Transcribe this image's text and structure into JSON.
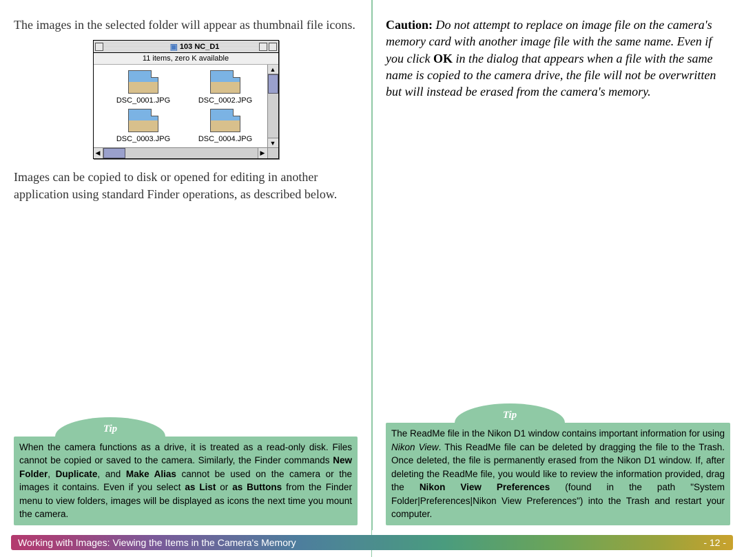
{
  "left": {
    "intro": "The images in the selected folder will appear as thumbnail file icons.",
    "below": "Images can be copied to disk or opened for editing in another application using standard Finder operations, as described below."
  },
  "finder": {
    "title": "103 NC_D1",
    "status": "11 items, zero K available",
    "files": [
      "DSC_0001.JPG",
      "DSC_0002.JPG",
      "DSC_0003.JPG",
      "DSC_0004.JPG"
    ]
  },
  "caution": {
    "label": "Caution:",
    "part1": "Do not attempt to replace on image file on the camera's memory card with another image file with the same name.  Even if you click ",
    "ok": "OK",
    "part2": " in the dialog that appears when a file with the same name is copied to the camera drive, the file will not be overwritten but will instead be erased from the camera's memory."
  },
  "tipLeft": {
    "label": "Tip",
    "t1": "When the camera functions as a drive, it is treated as a read-only disk.  Files cannot be copied or saved to the camera.  Similarly, the Finder commands ",
    "b1": "New Folder",
    "c1": ", ",
    "b2": "Duplicate",
    "c2": ", and ",
    "b3": "Make Alias",
    "t2": " cannot be used on the camera or the images it contains.  Even if you select ",
    "b4": "as List",
    "c3": " or ",
    "b5": "as Buttons",
    "t3": " from the Finder menu to view folders, images will be displayed as icons the next time you mount the camera."
  },
  "tipRight": {
    "label": "Tip",
    "t1": "The ReadMe file in the Nikon D1 window contains  important information for using ",
    "i1": "Nikon View",
    "t2": ".  This ReadMe file can be deleted by dragging the file to the Trash.  Once deleted, the file is permanently erased from the Nikon D1 window.  If,  after deleting the ReadMe file, you would like to review the information provided, drag the ",
    "b1": "Nikon View Preferences",
    "t3": " (found in the path \"System Folder|Preferences|Nikon View Preferences\") into the Trash and restart your computer."
  },
  "footer": {
    "text": "Working with Images:  Viewing the Items in the Camera's Memory",
    "page": "- 12 -"
  }
}
